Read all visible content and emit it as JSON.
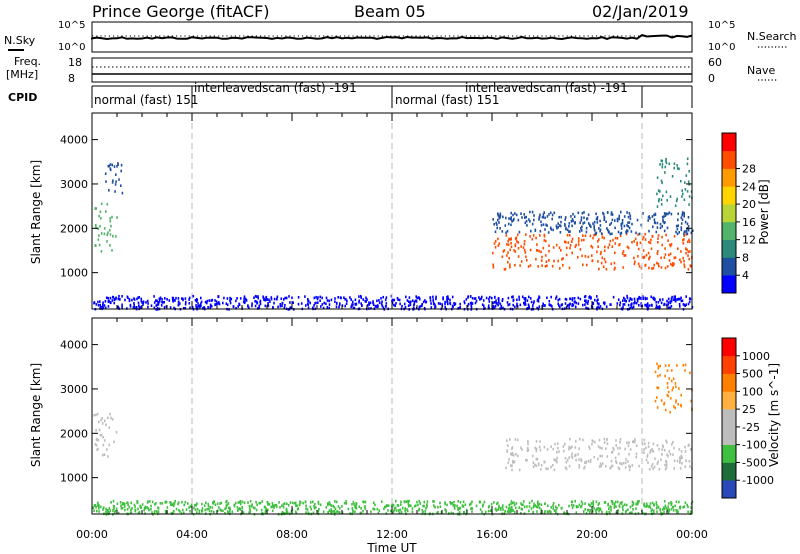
{
  "header": {
    "station": "Prince George (fitACF)",
    "beam": "Beam 05",
    "date": "02/Jan/2019"
  },
  "noise_panel": {
    "left_label": "N.Sky",
    "right_label": "N.Search",
    "left_ticks": [
      "10^5",
      "10^0"
    ],
    "right_ticks": [
      "10^5",
      "10^0"
    ]
  },
  "freq_panel": {
    "left_label_1": "Freq.",
    "left_label_2": "[MHz]",
    "right_label": "Nave",
    "left_ticks": [
      "18",
      "8"
    ],
    "right_ticks": [
      "60",
      "0"
    ]
  },
  "cpid_panel": {
    "label": "CPID",
    "segments": [
      {
        "name": "normal (fast)",
        "id": "151",
        "start_hour": 0,
        "end_hour": 4
      },
      {
        "name": "interleavedscan (fast)",
        "id": "-191",
        "start_hour": 4,
        "end_hour": 12
      },
      {
        "name": "normal (fast)",
        "id": "151",
        "start_hour": 12,
        "end_hour": 22
      },
      {
        "name": "interleavedscan (fast)",
        "id": "-191",
        "start_hour": 22,
        "end_hour": 24
      }
    ],
    "label_1": "normal (fast) 151",
    "label_2": "interleavedscan (fast) -191",
    "label_3": "normal (fast) 151",
    "label_4": "interleavedscan (fast) -191"
  },
  "chart_data": [
    {
      "type": "heatmap",
      "panel": "power",
      "ylabel": "Slant Range [km]",
      "ylim": [
        180,
        4600
      ],
      "yticks": [
        "1000",
        "2000",
        "3000",
        "4000"
      ],
      "xlim": [
        0,
        24
      ],
      "colorbar_label": "Power [dB]",
      "colorbar_ticks": [
        "4",
        "8",
        "12",
        "16",
        "20",
        "24",
        "28"
      ],
      "colorbar_colors": [
        "#0000ff",
        "#1f4fa0",
        "#2c8a7a",
        "#52b36b",
        "#b9d436",
        "#ffd500",
        "#ff9a00",
        "#ff4d00",
        "#ff0000"
      ],
      "scatter_regions": [
        {
          "t0": 0.0,
          "t1": 1.0,
          "r0": 1500,
          "r1": 2600,
          "color": "#52b36b"
        },
        {
          "t0": 0.5,
          "t1": 1.2,
          "r0": 2800,
          "r1": 3500,
          "color": "#1f4fa0"
        },
        {
          "t0": 0.0,
          "t1": 24.0,
          "r0": 200,
          "r1": 500,
          "color": "#0000ff"
        },
        {
          "t0": 16.0,
          "t1": 24.0,
          "r0": 1100,
          "r1": 1900,
          "color": "#ff4d00"
        },
        {
          "t0": 16.0,
          "t1": 24.0,
          "r0": 1900,
          "r1": 2400,
          "color": "#1f4fa0"
        },
        {
          "t0": 22.5,
          "t1": 24.0,
          "r0": 2500,
          "r1": 3600,
          "color": "#2c8a7a"
        }
      ]
    },
    {
      "type": "heatmap",
      "panel": "velocity",
      "ylabel": "Slant Range [km]",
      "ylim": [
        180,
        4600
      ],
      "yticks": [
        "1000",
        "2000",
        "3000",
        "4000"
      ],
      "xlim": [
        0,
        24
      ],
      "xticks": [
        "00:00",
        "04:00",
        "08:00",
        "12:00",
        "16:00",
        "20:00",
        "00:00"
      ],
      "xlabel": "Time UT",
      "colorbar_label": "Velocity [m s^-1]",
      "colorbar_ticks": [
        "1000",
        "500",
        "100",
        "25",
        "-25",
        "-100",
        "-500",
        "-1000"
      ],
      "colorbar_colors": [
        "#2a48b8",
        "#1f6b3a",
        "#3fbf3f",
        "#bdbdbd",
        "#bdbdbd",
        "#ffb040",
        "#ff8000",
        "#ff4000",
        "#ff0000"
      ],
      "scatter_regions": [
        {
          "t0": 0.0,
          "t1": 1.0,
          "r0": 1500,
          "r1": 2500,
          "color": "#bdbdbd"
        },
        {
          "t0": 0.0,
          "t1": 24.0,
          "r0": 200,
          "r1": 500,
          "color": "#3fbf3f"
        },
        {
          "t0": 16.5,
          "t1": 24.0,
          "r0": 1200,
          "r1": 1900,
          "color": "#bdbdbd"
        },
        {
          "t0": 22.5,
          "t1": 24.0,
          "r0": 2500,
          "r1": 3600,
          "color": "#ff8000"
        }
      ]
    }
  ],
  "vlines_hours": [
    4,
    12,
    22
  ]
}
